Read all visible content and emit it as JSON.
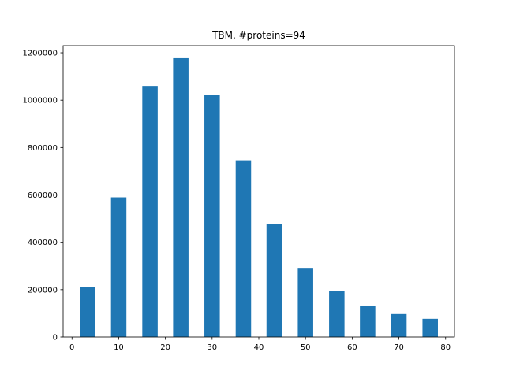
{
  "chart_data": {
    "type": "bar",
    "title": "TBM, #proteins=94",
    "xlabel": "",
    "ylabel": "",
    "xlim": [
      -1.9,
      81.9
    ],
    "ylim": [
      0,
      1230000
    ],
    "bar_width": 3.3,
    "x": [
      3.3,
      10.0,
      16.7,
      23.3,
      30.0,
      36.7,
      43.3,
      50.0,
      56.7,
      63.3,
      70.0,
      76.7
    ],
    "values": [
      210000,
      590000,
      1060000,
      1177000,
      1023000,
      746000,
      478000,
      292000,
      195000,
      133000,
      97000,
      77000
    ],
    "xticks": [
      0,
      10,
      20,
      30,
      40,
      50,
      60,
      70,
      80
    ],
    "yticks": [
      0,
      200000,
      400000,
      600000,
      800000,
      1000000,
      1200000
    ],
    "grid": false,
    "colors": {
      "bar": "#1f77b4",
      "axes": "#000000"
    }
  }
}
